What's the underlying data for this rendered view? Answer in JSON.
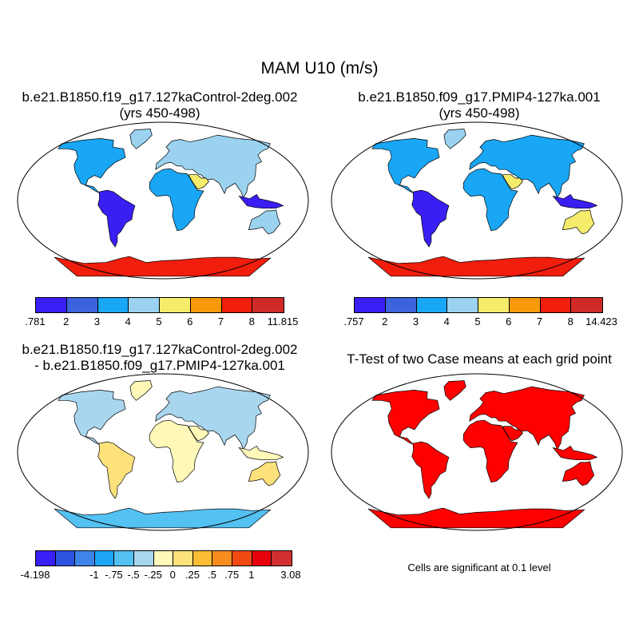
{
  "title": "MAM U10 (m/s)",
  "colors": {
    "land_1": [
      "#3a1ff5",
      "#3c63dc",
      "#19a6f5",
      "#9ad2f0",
      "#f6ec6c",
      "#f69a0a",
      "#f11d0d",
      "#cf2a27"
    ],
    "diff": [
      "#3a1ff5",
      "#2c52e0",
      "#3f84e8",
      "#1ea4f5",
      "#54c1f3",
      "#a9d6ef",
      "#fff8b8",
      "#fde27c",
      "#fbbd35",
      "#f78c1f",
      "#f04a12",
      "#e6000a",
      "#d13030"
    ],
    "significant": "#ff0000",
    "outline": "#000000"
  },
  "panels": [
    {
      "title_line1": "b.e21.B1850.f19_g17.127kaControl-2deg.002",
      "title_line2": "(yrs 450-498)",
      "colorbar_labels": [
        ".781",
        "2",
        "3",
        "4",
        "5",
        "6",
        "7",
        "8",
        "11.815"
      ]
    },
    {
      "title_line1": "b.e21.B1850.f09_g17.PMIP4-127ka.001",
      "title_line2": "(yrs 450-498)",
      "colorbar_labels": [
        ".757",
        "2",
        "3",
        "4",
        "5",
        "6",
        "7",
        "8",
        "14.423"
      ]
    },
    {
      "title_line1": "b.e21.B1850.f19_g17.127kaControl-2deg.002",
      "title_line2": "- b.e21.B1850.f09_g17.PMIP4-127ka.001",
      "colorbar_labels": [
        "-4.198",
        "-1",
        "-.75",
        "-.5",
        "-.25",
        "0",
        ".25",
        ".5",
        ".75",
        "1",
        "3.08"
      ]
    },
    {
      "title_line1": "T-Test of two Case means at each grid point",
      "note": "Cells are significant at 0.1 level"
    }
  ]
}
